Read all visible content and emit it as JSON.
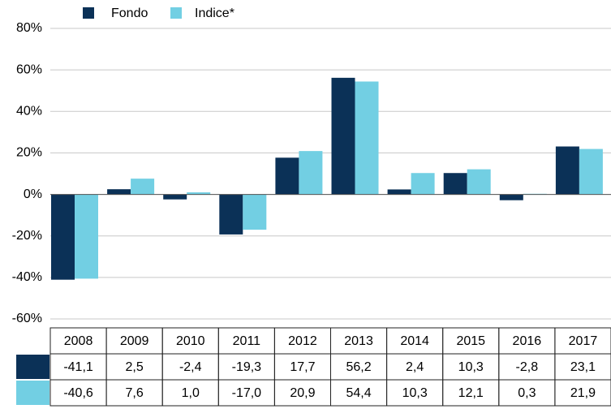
{
  "chart_data": {
    "type": "bar",
    "categories": [
      "2008",
      "2009",
      "2010",
      "2011",
      "2012",
      "2013",
      "2014",
      "2015",
      "2016",
      "2017"
    ],
    "series": [
      {
        "name": "Fondo",
        "color": "#0b3157",
        "values": [
          -41.1,
          2.5,
          -2.4,
          -19.3,
          17.7,
          56.2,
          2.4,
          10.3,
          -2.8,
          23.1
        ],
        "value_labels": [
          "-41,1",
          "2,5",
          "-2,4",
          "-19,3",
          "17,7",
          "56,2",
          "2,4",
          "10,3",
          "-2,8",
          "23,1"
        ]
      },
      {
        "name": "Indice*",
        "color": "#72cfe3",
        "values": [
          -40.6,
          7.6,
          1.0,
          -17.0,
          20.9,
          54.4,
          10.3,
          12.1,
          0.3,
          21.9
        ],
        "value_labels": [
          "-40,6",
          "7,6",
          "1,0",
          "-17,0",
          "20,9",
          "54,4",
          "10,3",
          "12,1",
          "0,3",
          "21,9"
        ]
      }
    ],
    "ylim": [
      -60,
      80
    ],
    "yticks": [
      {
        "value": -60,
        "label": "-60%"
      },
      {
        "value": -40,
        "label": "-40%"
      },
      {
        "value": -20,
        "label": "-20%"
      },
      {
        "value": 0,
        "label": "0%"
      },
      {
        "value": 20,
        "label": "20%"
      },
      {
        "value": 40,
        "label": "40%"
      },
      {
        "value": 60,
        "label": "60%"
      },
      {
        "value": 80,
        "label": "80%"
      }
    ],
    "grid": true
  }
}
